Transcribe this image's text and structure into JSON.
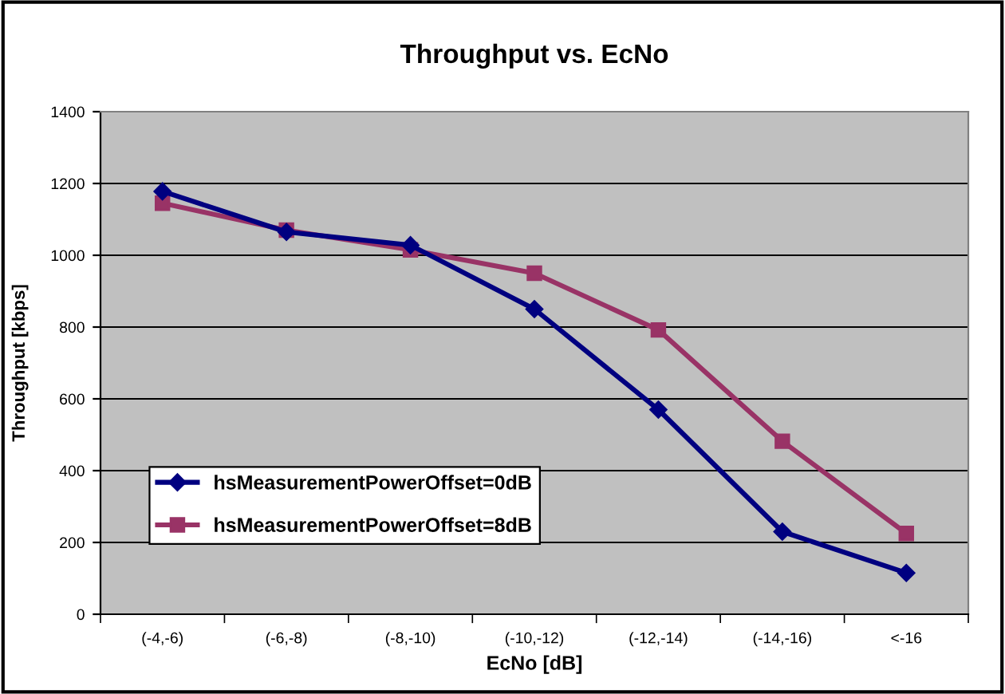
{
  "chart_data": {
    "type": "line",
    "title": "Throughput vs. EcNo",
    "xlabel": "EcNo [dB]",
    "ylabel": "Throughput [kbps]",
    "categories": [
      "(-4,-6)",
      "(-6,-8)",
      "(-8,-10)",
      "(-10,-12)",
      "(-12,-14)",
      "(-14,-16)",
      "<-16"
    ],
    "series": [
      {
        "name": "hsMeasurementPowerOffset=0dB",
        "color": "#000080",
        "marker": "diamond",
        "values": [
          1178,
          1065,
          1028,
          850,
          570,
          230,
          115
        ]
      },
      {
        "name": "hsMeasurementPowerOffset=8dB",
        "color": "#993366",
        "marker": "square",
        "values": [
          1145,
          1070,
          1015,
          950,
          792,
          482,
          225
        ]
      }
    ],
    "ylim": [
      0,
      1400
    ],
    "yticks": [
      0,
      200,
      400,
      600,
      800,
      1000,
      1200,
      1400
    ],
    "grid": "y",
    "legend": "bottom left",
    "line_style": "solid"
  }
}
